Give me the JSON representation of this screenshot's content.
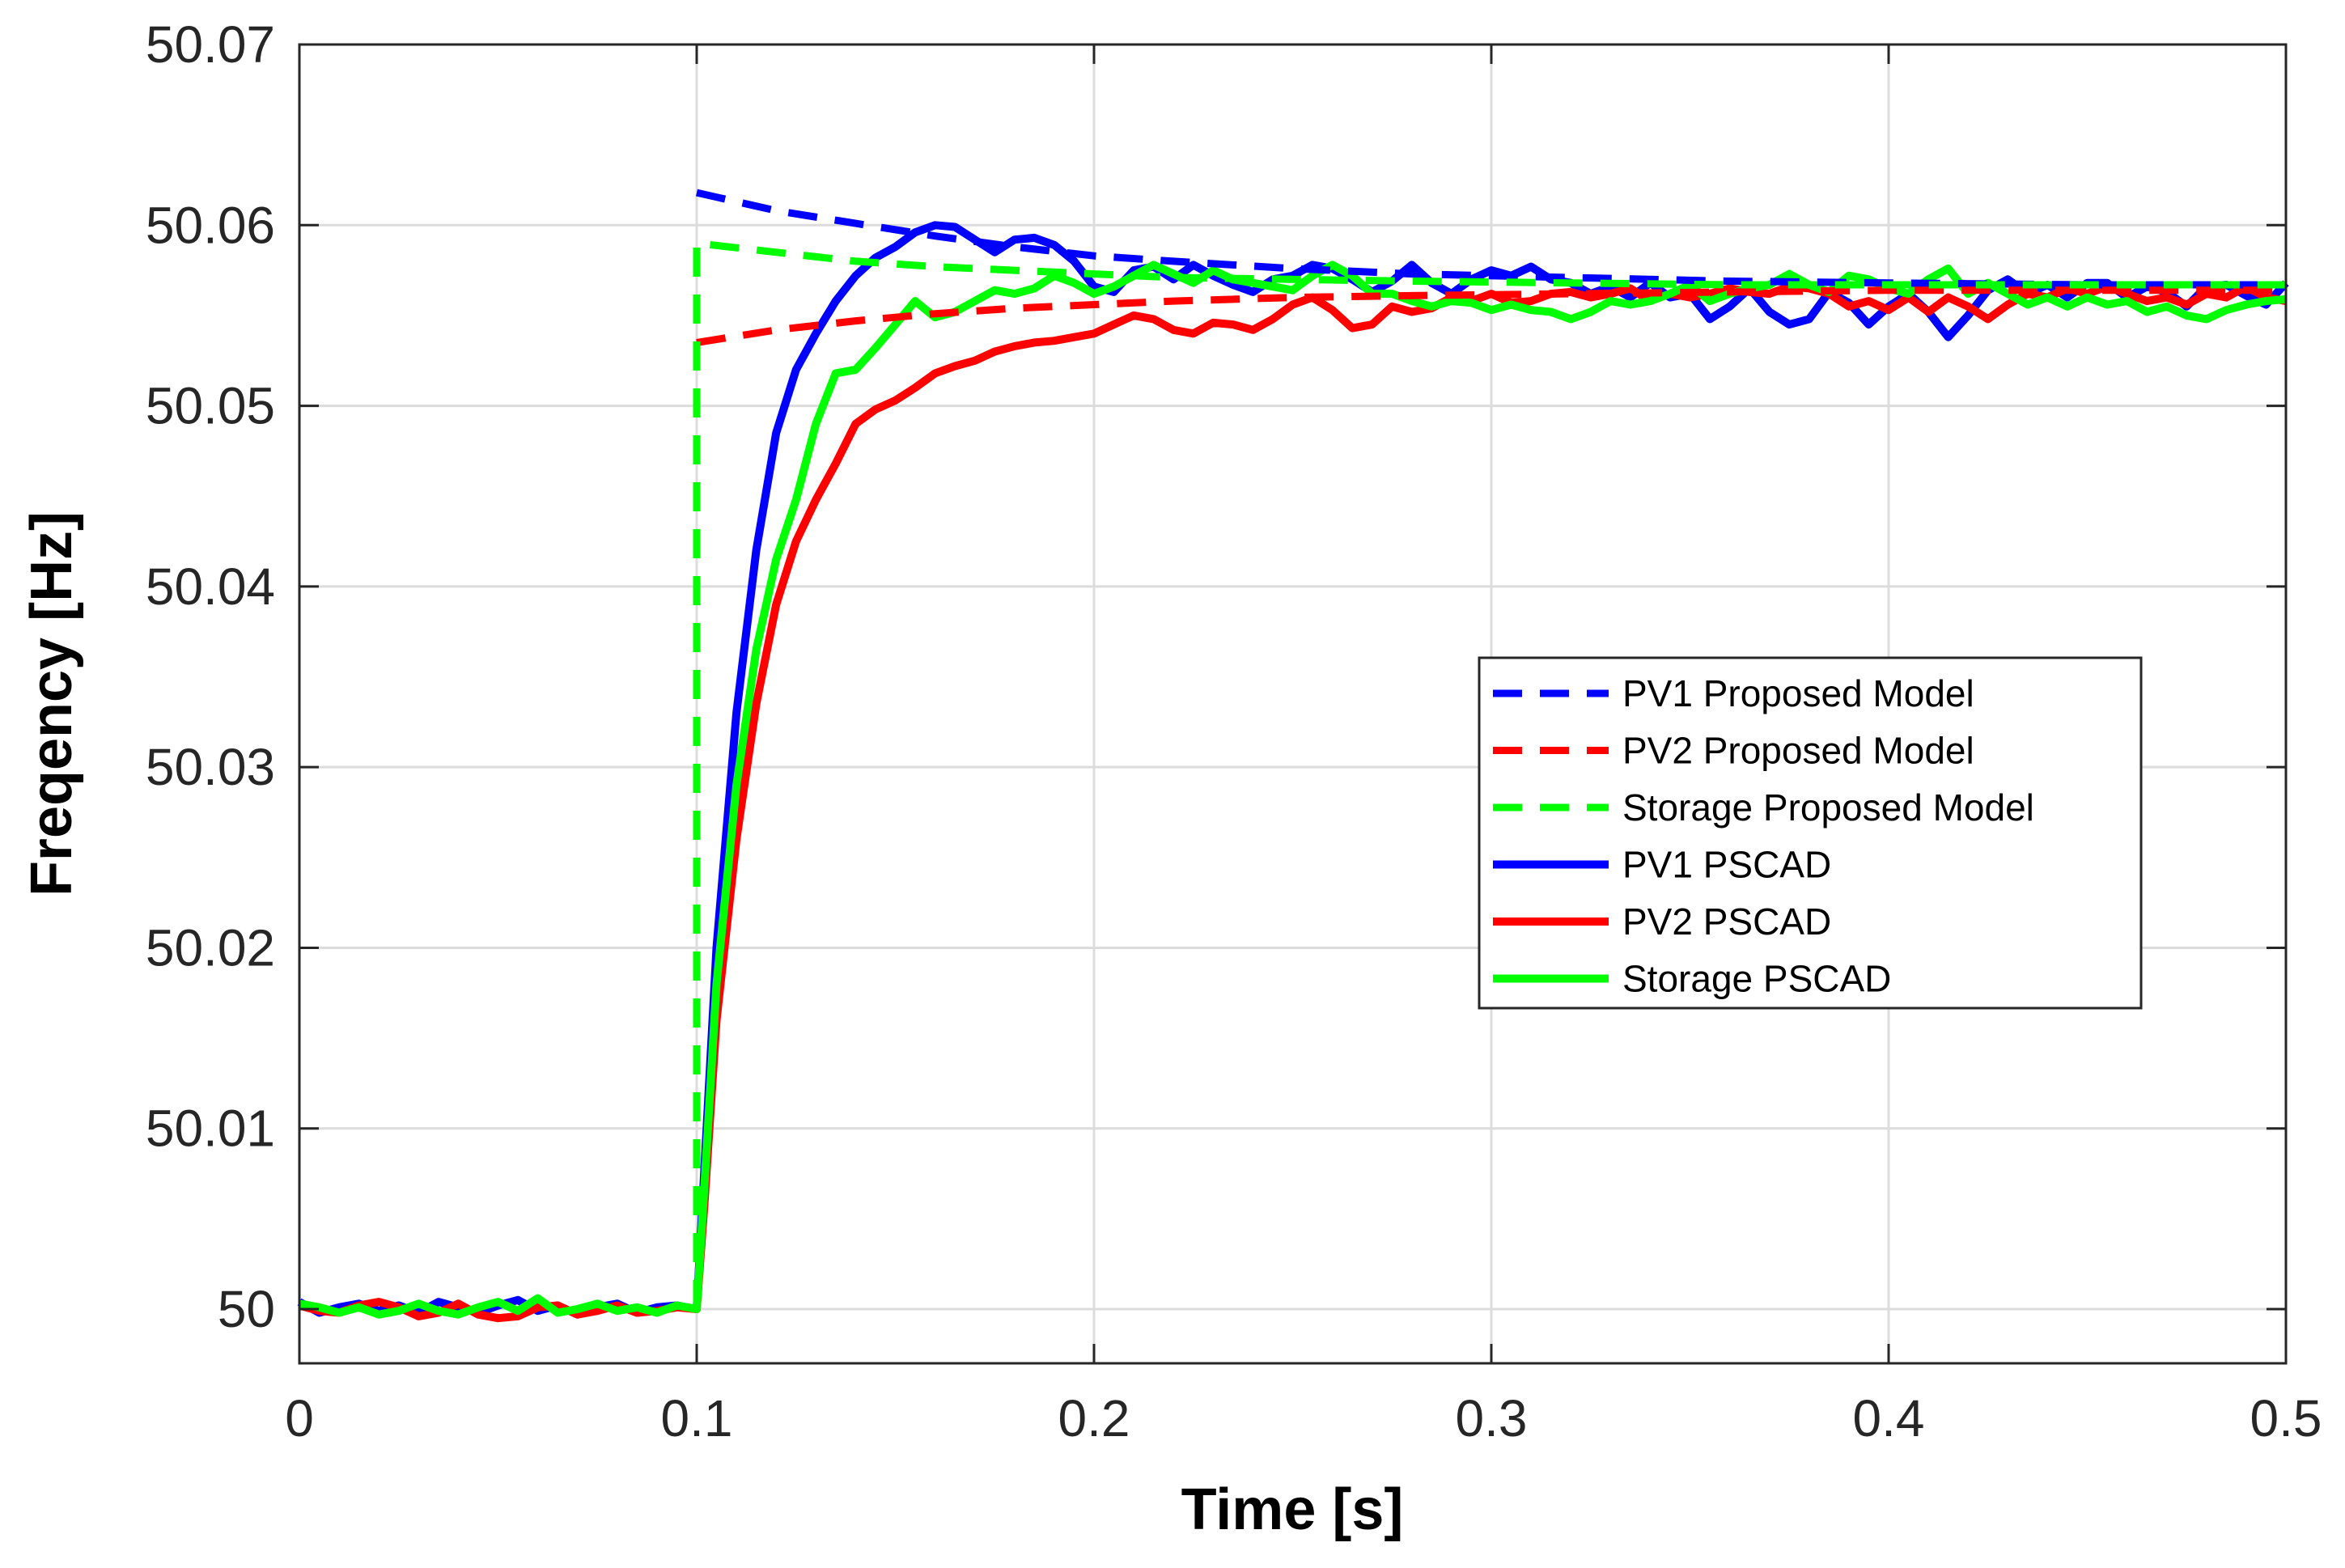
{
  "chart_data": {
    "type": "line",
    "title": "",
    "xlabel": "Time [s]",
    "ylabel": "Freqency [Hz]",
    "xlim": [
      0,
      0.5
    ],
    "ylim": [
      49.997,
      50.07
    ],
    "xticks": [
      0,
      0.1,
      0.2,
      0.3,
      0.4,
      0.5
    ],
    "xtick_labels": [
      "0",
      "0.1",
      "0.2",
      "0.3",
      "0.4",
      "0.5"
    ],
    "yticks": [
      50,
      50.01,
      50.02,
      50.03,
      50.04,
      50.05,
      50.06,
      50.07
    ],
    "ytick_labels": [
      "50",
      "50.01",
      "50.02",
      "50.03",
      "50.04",
      "50.05",
      "50.06",
      "50.07"
    ],
    "grid": true,
    "legend_position": "center-right",
    "series": [
      {
        "name": "PV1 Proposed Model",
        "color": "#0000ff",
        "style": "dashed",
        "x": [
          0.1,
          0.12,
          0.14,
          0.16,
          0.18,
          0.2,
          0.22,
          0.25,
          0.28,
          0.32,
          0.36,
          0.4,
          0.45,
          0.5
        ],
        "y": [
          50.0618,
          50.0608,
          50.0601,
          50.0594,
          50.0588,
          50.0583,
          50.058,
          50.0576,
          50.0573,
          50.0571,
          50.0569,
          50.0568,
          50.0567,
          50.0567
        ]
      },
      {
        "name": "PV2 Proposed Model",
        "color": "#ff0000",
        "style": "dashed",
        "x": [
          0.1,
          0.12,
          0.14,
          0.16,
          0.18,
          0.2,
          0.22,
          0.25,
          0.28,
          0.32,
          0.36,
          0.4,
          0.45,
          0.5
        ],
        "y": [
          50.0535,
          50.0542,
          50.0547,
          50.0551,
          50.0554,
          50.0556,
          50.0558,
          50.056,
          50.0561,
          50.0562,
          50.0563,
          50.0564,
          50.0564,
          50.0564
        ]
      },
      {
        "name": "Storage Proposed Model",
        "color": "#00ff00",
        "style": "dashed",
        "x": [
          0.1,
          0.1,
          0.12,
          0.14,
          0.16,
          0.18,
          0.2,
          0.22,
          0.25,
          0.28,
          0.32,
          0.36,
          0.4,
          0.45,
          0.5
        ],
        "y": [
          50.0,
          50.059,
          50.0585,
          50.058,
          50.0577,
          50.0575,
          50.0573,
          50.0571,
          50.057,
          50.0569,
          50.0568,
          50.0567,
          50.0567,
          50.0567,
          50.0567
        ]
      },
      {
        "name": "PV1 PSCAD",
        "color": "#0000ff",
        "style": "solid",
        "x": [
          0,
          0.005,
          0.01,
          0.015,
          0.02,
          0.025,
          0.03,
          0.035,
          0.04,
          0.045,
          0.05,
          0.055,
          0.06,
          0.065,
          0.07,
          0.075,
          0.08,
          0.085,
          0.09,
          0.095,
          0.1,
          0.102,
          0.105,
          0.11,
          0.115,
          0.12,
          0.125,
          0.13,
          0.135,
          0.14,
          0.145,
          0.15,
          0.155,
          0.16,
          0.165,
          0.17,
          0.175,
          0.18,
          0.185,
          0.19,
          0.195,
          0.2,
          0.205,
          0.21,
          0.215,
          0.22,
          0.225,
          0.23,
          0.235,
          0.24,
          0.245,
          0.25,
          0.255,
          0.26,
          0.265,
          0.27,
          0.275,
          0.28,
          0.285,
          0.29,
          0.295,
          0.3,
          0.305,
          0.31,
          0.315,
          0.32,
          0.325,
          0.33,
          0.335,
          0.34,
          0.345,
          0.35,
          0.355,
          0.36,
          0.365,
          0.37,
          0.375,
          0.38,
          0.385,
          0.39,
          0.395,
          0.4,
          0.405,
          0.41,
          0.415,
          0.42,
          0.425,
          0.43,
          0.435,
          0.44,
          0.445,
          0.45,
          0.455,
          0.46,
          0.465,
          0.47,
          0.475,
          0.48,
          0.485,
          0.49,
          0.495,
          0.5
        ],
        "y": [
          50.0004,
          49.9998,
          50.0001,
          50.0003,
          49.9999,
          50.0002,
          49.9998,
          50.0004,
          50.0001,
          49.9998,
          50.0002,
          50.0005,
          49.9999,
          50.0002,
          49.9997,
          50.0001,
          50.0003,
          49.9998,
          50.0001,
          50.0002,
          50.0,
          50.008,
          50.02,
          50.033,
          50.042,
          50.0485,
          50.052,
          50.054,
          50.0558,
          50.0572,
          50.0582,
          50.0588,
          50.0596,
          50.06,
          50.0599,
          50.0592,
          50.0585,
          50.0592,
          50.0593,
          50.0589,
          50.058,
          50.0566,
          50.0563,
          50.0575,
          50.0577,
          50.057,
          50.0578,
          50.0572,
          50.0567,
          50.0563,
          50.057,
          50.0572,
          50.0578,
          50.0576,
          50.057,
          50.0563,
          50.0569,
          50.0578,
          50.0568,
          50.0562,
          50.057,
          50.0575,
          50.0572,
          50.0577,
          50.057,
          50.0568,
          50.0562,
          50.0566,
          50.056,
          50.0568,
          50.056,
          50.0562,
          50.0548,
          50.0555,
          50.0565,
          50.0552,
          50.0545,
          50.0548,
          50.0563,
          50.0557,
          50.0545,
          50.0555,
          50.0562,
          50.0552,
          50.0538,
          50.055,
          50.0564,
          50.057,
          50.0562,
          50.0567,
          50.056,
          50.0568,
          50.0568,
          50.056,
          50.0566,
          50.0563,
          50.0555,
          50.0566,
          50.0567,
          50.0561,
          50.0556,
          50.0568
        ]
      },
      {
        "name": "PV2 PSCAD",
        "color": "#ff0000",
        "style": "solid",
        "x": [
          0,
          0.005,
          0.01,
          0.015,
          0.02,
          0.025,
          0.03,
          0.035,
          0.04,
          0.045,
          0.05,
          0.055,
          0.06,
          0.065,
          0.07,
          0.075,
          0.08,
          0.085,
          0.09,
          0.095,
          0.1,
          0.102,
          0.105,
          0.11,
          0.115,
          0.12,
          0.125,
          0.13,
          0.135,
          0.14,
          0.145,
          0.15,
          0.155,
          0.16,
          0.165,
          0.17,
          0.175,
          0.18,
          0.185,
          0.19,
          0.195,
          0.2,
          0.205,
          0.21,
          0.215,
          0.22,
          0.225,
          0.23,
          0.235,
          0.24,
          0.245,
          0.25,
          0.255,
          0.26,
          0.265,
          0.27,
          0.275,
          0.28,
          0.285,
          0.29,
          0.295,
          0.3,
          0.305,
          0.31,
          0.315,
          0.32,
          0.325,
          0.33,
          0.335,
          0.34,
          0.345,
          0.35,
          0.355,
          0.36,
          0.365,
          0.37,
          0.375,
          0.38,
          0.385,
          0.39,
          0.395,
          0.4,
          0.405,
          0.41,
          0.415,
          0.42,
          0.425,
          0.43,
          0.435,
          0.44,
          0.445,
          0.45,
          0.455,
          0.46,
          0.465,
          0.47,
          0.475,
          0.48,
          0.485,
          0.49,
          0.495,
          0.5
        ],
        "y": [
          50.0002,
          49.9999,
          49.9998,
          50.0002,
          50.0004,
          50.0001,
          49.9996,
          49.9998,
          50.0003,
          49.9997,
          49.9995,
          49.9996,
          50.0001,
          50.0002,
          49.9997,
          49.9999,
          50.0002,
          49.9998,
          49.9999,
          50.0001,
          50.0,
          50.006,
          50.016,
          50.026,
          50.0335,
          50.039,
          50.0425,
          50.0448,
          50.0468,
          50.049,
          50.0498,
          50.0503,
          50.051,
          50.0518,
          50.0522,
          50.0525,
          50.053,
          50.0533,
          50.0535,
          50.0536,
          50.0538,
          50.054,
          50.0545,
          50.055,
          50.0548,
          50.0542,
          50.054,
          50.0546,
          50.0545,
          50.0542,
          50.0548,
          50.0556,
          50.056,
          50.0553,
          50.0543,
          50.0545,
          50.0555,
          50.0552,
          50.0554,
          50.056,
          50.0558,
          50.0562,
          50.0557,
          50.0558,
          50.0562,
          50.0563,
          50.056,
          50.0562,
          50.0565,
          50.0558,
          50.0562,
          50.056,
          50.0562,
          50.0565,
          50.0563,
          50.0562,
          50.0566,
          50.0565,
          50.0562,
          50.0555,
          50.0558,
          50.0553,
          50.056,
          50.0552,
          50.056,
          50.0555,
          50.0548,
          50.0556,
          50.0562,
          50.056,
          50.0565,
          50.0562,
          50.0566,
          50.0562,
          50.0558,
          50.056,
          50.0556,
          50.0562,
          50.056,
          50.0566,
          50.056,
          50.0558
        ]
      },
      {
        "name": "Storage PSCAD",
        "color": "#00ff00",
        "style": "solid",
        "x": [
          0,
          0.005,
          0.01,
          0.015,
          0.02,
          0.025,
          0.03,
          0.035,
          0.04,
          0.045,
          0.05,
          0.055,
          0.06,
          0.065,
          0.07,
          0.075,
          0.08,
          0.085,
          0.09,
          0.095,
          0.1,
          0.102,
          0.105,
          0.11,
          0.115,
          0.12,
          0.125,
          0.13,
          0.135,
          0.14,
          0.145,
          0.15,
          0.155,
          0.16,
          0.165,
          0.17,
          0.175,
          0.18,
          0.185,
          0.19,
          0.195,
          0.2,
          0.205,
          0.21,
          0.215,
          0.22,
          0.225,
          0.23,
          0.235,
          0.24,
          0.245,
          0.25,
          0.255,
          0.26,
          0.265,
          0.27,
          0.275,
          0.28,
          0.285,
          0.29,
          0.295,
          0.3,
          0.305,
          0.31,
          0.315,
          0.32,
          0.325,
          0.33,
          0.335,
          0.34,
          0.345,
          0.35,
          0.355,
          0.36,
          0.365,
          0.37,
          0.375,
          0.38,
          0.385,
          0.39,
          0.395,
          0.4,
          0.405,
          0.41,
          0.415,
          0.42,
          0.425,
          0.43,
          0.435,
          0.44,
          0.445,
          0.45,
          0.455,
          0.46,
          0.465,
          0.47,
          0.475,
          0.48,
          0.485,
          0.49,
          0.495,
          0.5
        ],
        "y": [
          50.0003,
          50.0001,
          49.9998,
          50.0001,
          49.9997,
          49.9999,
          50.0003,
          49.9999,
          49.9997,
          50.0001,
          50.0004,
          49.9999,
          50.0006,
          49.9998,
          50.0,
          50.0003,
          49.9999,
          50.0001,
          49.9998,
          50.0002,
          50.0,
          50.007,
          50.018,
          50.029,
          50.0365,
          50.0415,
          50.0448,
          50.049,
          50.0518,
          50.052,
          50.0532,
          50.0545,
          50.0558,
          50.0549,
          50.0552,
          50.0558,
          50.0564,
          50.0562,
          50.0565,
          50.0572,
          50.0568,
          50.0562,
          50.0566,
          50.0572,
          50.0578,
          50.0573,
          50.0568,
          50.0575,
          50.057,
          50.0568,
          50.0566,
          50.0564,
          50.0572,
          50.0578,
          50.0572,
          50.0562,
          50.0562,
          50.0558,
          50.0555,
          50.0558,
          50.0557,
          50.0553,
          50.0556,
          50.0553,
          50.0552,
          50.0548,
          50.0552,
          50.0558,
          50.0556,
          50.0558,
          50.0562,
          50.0567,
          50.0558,
          50.0562,
          50.0565,
          50.0567,
          50.0573,
          50.0567,
          50.0563,
          50.0572,
          50.057,
          50.0565,
          50.0562,
          50.057,
          50.0576,
          50.0562,
          50.0568,
          50.0562,
          50.0556,
          50.056,
          50.0555,
          50.056,
          50.0556,
          50.0558,
          50.0552,
          50.0555,
          50.055,
          50.0548,
          50.0553,
          50.0556,
          50.0558,
          50.0559
        ]
      }
    ]
  }
}
